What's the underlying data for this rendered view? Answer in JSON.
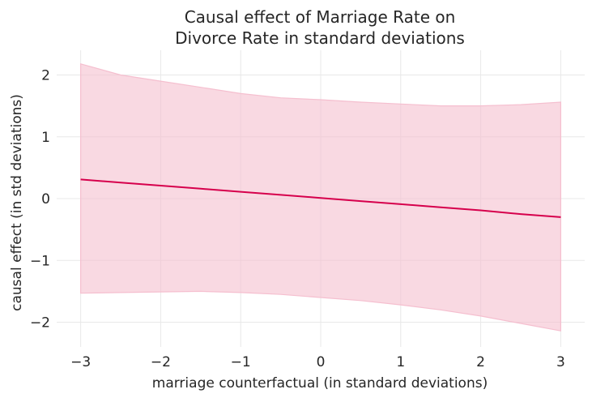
{
  "chart_data": {
    "type": "line",
    "title": [
      "Causal effect of Marriage Rate on",
      "Divorce Rate in standard deviations"
    ],
    "xlabel": "marriage counterfactual (in standard deviations)",
    "ylabel": "causal effect (in std deviations)",
    "xlim": [
      -3.3,
      3.3
    ],
    "ylim": [
      -2.4,
      2.4
    ],
    "xticks": [
      -3,
      -2,
      -1,
      0,
      1,
      2,
      3
    ],
    "xtick_labels": [
      "−3",
      "−2",
      "−1",
      "0",
      "1",
      "2",
      "3"
    ],
    "yticks": [
      2,
      1,
      0,
      -1,
      -2
    ],
    "ytick_labels": [
      "2",
      "1",
      "0",
      "−1",
      "−2"
    ],
    "grid": true,
    "series": [
      {
        "name": "mean",
        "color": "#d6004c",
        "x": [
          -3.0,
          -2.5,
          -2.0,
          -1.5,
          -1.0,
          -0.5,
          0.0,
          0.5,
          1.0,
          1.5,
          2.0,
          2.5,
          3.0
        ],
        "y": [
          0.31,
          0.26,
          0.21,
          0.16,
          0.11,
          0.06,
          0.01,
          -0.04,
          -0.09,
          -0.14,
          -0.19,
          -0.25,
          -0.3
        ]
      }
    ],
    "band": {
      "name": "interval",
      "color": "#f5bfcf",
      "x": [
        -3.0,
        -2.5,
        -2.0,
        -1.5,
        -1.0,
        -0.5,
        0.0,
        0.5,
        1.0,
        1.5,
        2.0,
        2.5,
        3.0
      ],
      "upper": [
        2.18,
        2.0,
        1.9,
        1.8,
        1.7,
        1.63,
        1.6,
        1.56,
        1.53,
        1.5,
        1.5,
        1.52,
        1.56
      ],
      "lower": [
        -1.53,
        -1.52,
        -1.51,
        -1.5,
        -1.52,
        -1.55,
        -1.6,
        -1.65,
        -1.72,
        -1.8,
        -1.9,
        -2.02,
        -2.14
      ]
    }
  }
}
